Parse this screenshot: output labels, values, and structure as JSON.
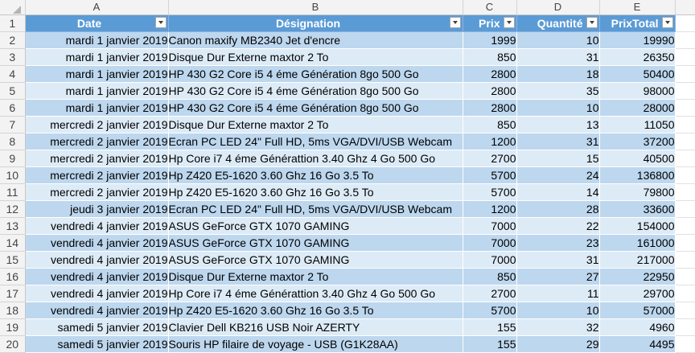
{
  "columns": [
    "A",
    "B",
    "C",
    "D",
    "E"
  ],
  "header_row_number": "1",
  "headers": {
    "date": "Date",
    "designation": "Désignation",
    "prix": "Prix",
    "quantite": "Quantité",
    "prix_total": "PrixTotal"
  },
  "rows": [
    {
      "n": "2",
      "date": "mardi 1 janvier 2019",
      "designation": "Canon maxify MB2340 Jet d'encre",
      "prix": "1999",
      "quantite": "10",
      "total": "19990"
    },
    {
      "n": "3",
      "date": "mardi 1 janvier 2019",
      "designation": "Disque Dur Externe maxtor 2 To",
      "prix": "850",
      "quantite": "31",
      "total": "26350"
    },
    {
      "n": "4",
      "date": "mardi 1 janvier 2019",
      "designation": "HP 430 G2 Core i5 4 éme Génération 8go 500 Go",
      "prix": "2800",
      "quantite": "18",
      "total": "50400"
    },
    {
      "n": "5",
      "date": "mardi 1 janvier 2019",
      "designation": "HP 430 G2 Core i5 4 éme Génération 8go 500 Go",
      "prix": "2800",
      "quantite": "35",
      "total": "98000"
    },
    {
      "n": "6",
      "date": "mardi 1 janvier 2019",
      "designation": "HP 430 G2 Core i5 4 éme Génération 8go 500 Go",
      "prix": "2800",
      "quantite": "10",
      "total": "28000"
    },
    {
      "n": "7",
      "date": "mercredi 2 janvier 2019",
      "designation": "Disque Dur Externe maxtor 2 To",
      "prix": "850",
      "quantite": "13",
      "total": "11050"
    },
    {
      "n": "8",
      "date": "mercredi 2 janvier 2019",
      "designation": "Ecran PC LED 24\" Full HD, 5ms VGA/DVI/USB Webcam",
      "prix": "1200",
      "quantite": "31",
      "total": "37200"
    },
    {
      "n": "9",
      "date": "mercredi 2 janvier 2019",
      "designation": "Hp Core i7 4 éme Générattion 3.40 Ghz 4 Go 500 Go",
      "prix": "2700",
      "quantite": "15",
      "total": "40500"
    },
    {
      "n": "10",
      "date": "mercredi 2 janvier 2019",
      "designation": "Hp Z420 E5-1620 3.60 Ghz 16 Go 3.5 To",
      "prix": "5700",
      "quantite": "24",
      "total": "136800"
    },
    {
      "n": "11",
      "date": "mercredi 2 janvier 2019",
      "designation": "Hp Z420 E5-1620 3.60 Ghz 16 Go 3.5 To",
      "prix": "5700",
      "quantite": "14",
      "total": "79800"
    },
    {
      "n": "12",
      "date": "jeudi 3 janvier 2019",
      "designation": "Ecran PC LED 24\" Full HD, 5ms VGA/DVI/USB Webcam",
      "prix": "1200",
      "quantite": "28",
      "total": "33600"
    },
    {
      "n": "13",
      "date": "vendredi 4 janvier 2019",
      "designation": "ASUS GeForce GTX 1070 GAMING",
      "prix": "7000",
      "quantite": "22",
      "total": "154000"
    },
    {
      "n": "14",
      "date": "vendredi 4 janvier 2019",
      "designation": "ASUS GeForce GTX 1070 GAMING",
      "prix": "7000",
      "quantite": "23",
      "total": "161000"
    },
    {
      "n": "15",
      "date": "vendredi 4 janvier 2019",
      "designation": "ASUS GeForce GTX 1070 GAMING",
      "prix": "7000",
      "quantite": "31",
      "total": "217000"
    },
    {
      "n": "16",
      "date": "vendredi 4 janvier 2019",
      "designation": "Disque Dur Externe maxtor 2 To",
      "prix": "850",
      "quantite": "27",
      "total": "22950"
    },
    {
      "n": "17",
      "date": "vendredi 4 janvier 2019",
      "designation": "Hp Core i7 4 éme Générattion 3.40 Ghz 4 Go 500 Go",
      "prix": "2700",
      "quantite": "11",
      "total": "29700"
    },
    {
      "n": "18",
      "date": "vendredi 4 janvier 2019",
      "designation": "Hp Z420 E5-1620 3.60 Ghz 16 Go 3.5 To",
      "prix": "5700",
      "quantite": "10",
      "total": "57000"
    },
    {
      "n": "19",
      "date": "samedi 5 janvier 2019",
      "designation": "Clavier Dell KB216 USB Noir AZERTY",
      "prix": "155",
      "quantite": "32",
      "total": "4960"
    },
    {
      "n": "20",
      "date": "samedi 5 janvier 2019",
      "designation": "Souris HP filaire de voyage - USB (G1K28AA)",
      "prix": "155",
      "quantite": "29",
      "total": "4495"
    }
  ],
  "icons": {
    "filter": "filter-dropdown-icon",
    "select_all": "select-all-triangle-icon"
  },
  "colors": {
    "header_fill": "#5b9bd5",
    "band_dark": "#bdd7ee",
    "band_light": "#ddebf7"
  }
}
